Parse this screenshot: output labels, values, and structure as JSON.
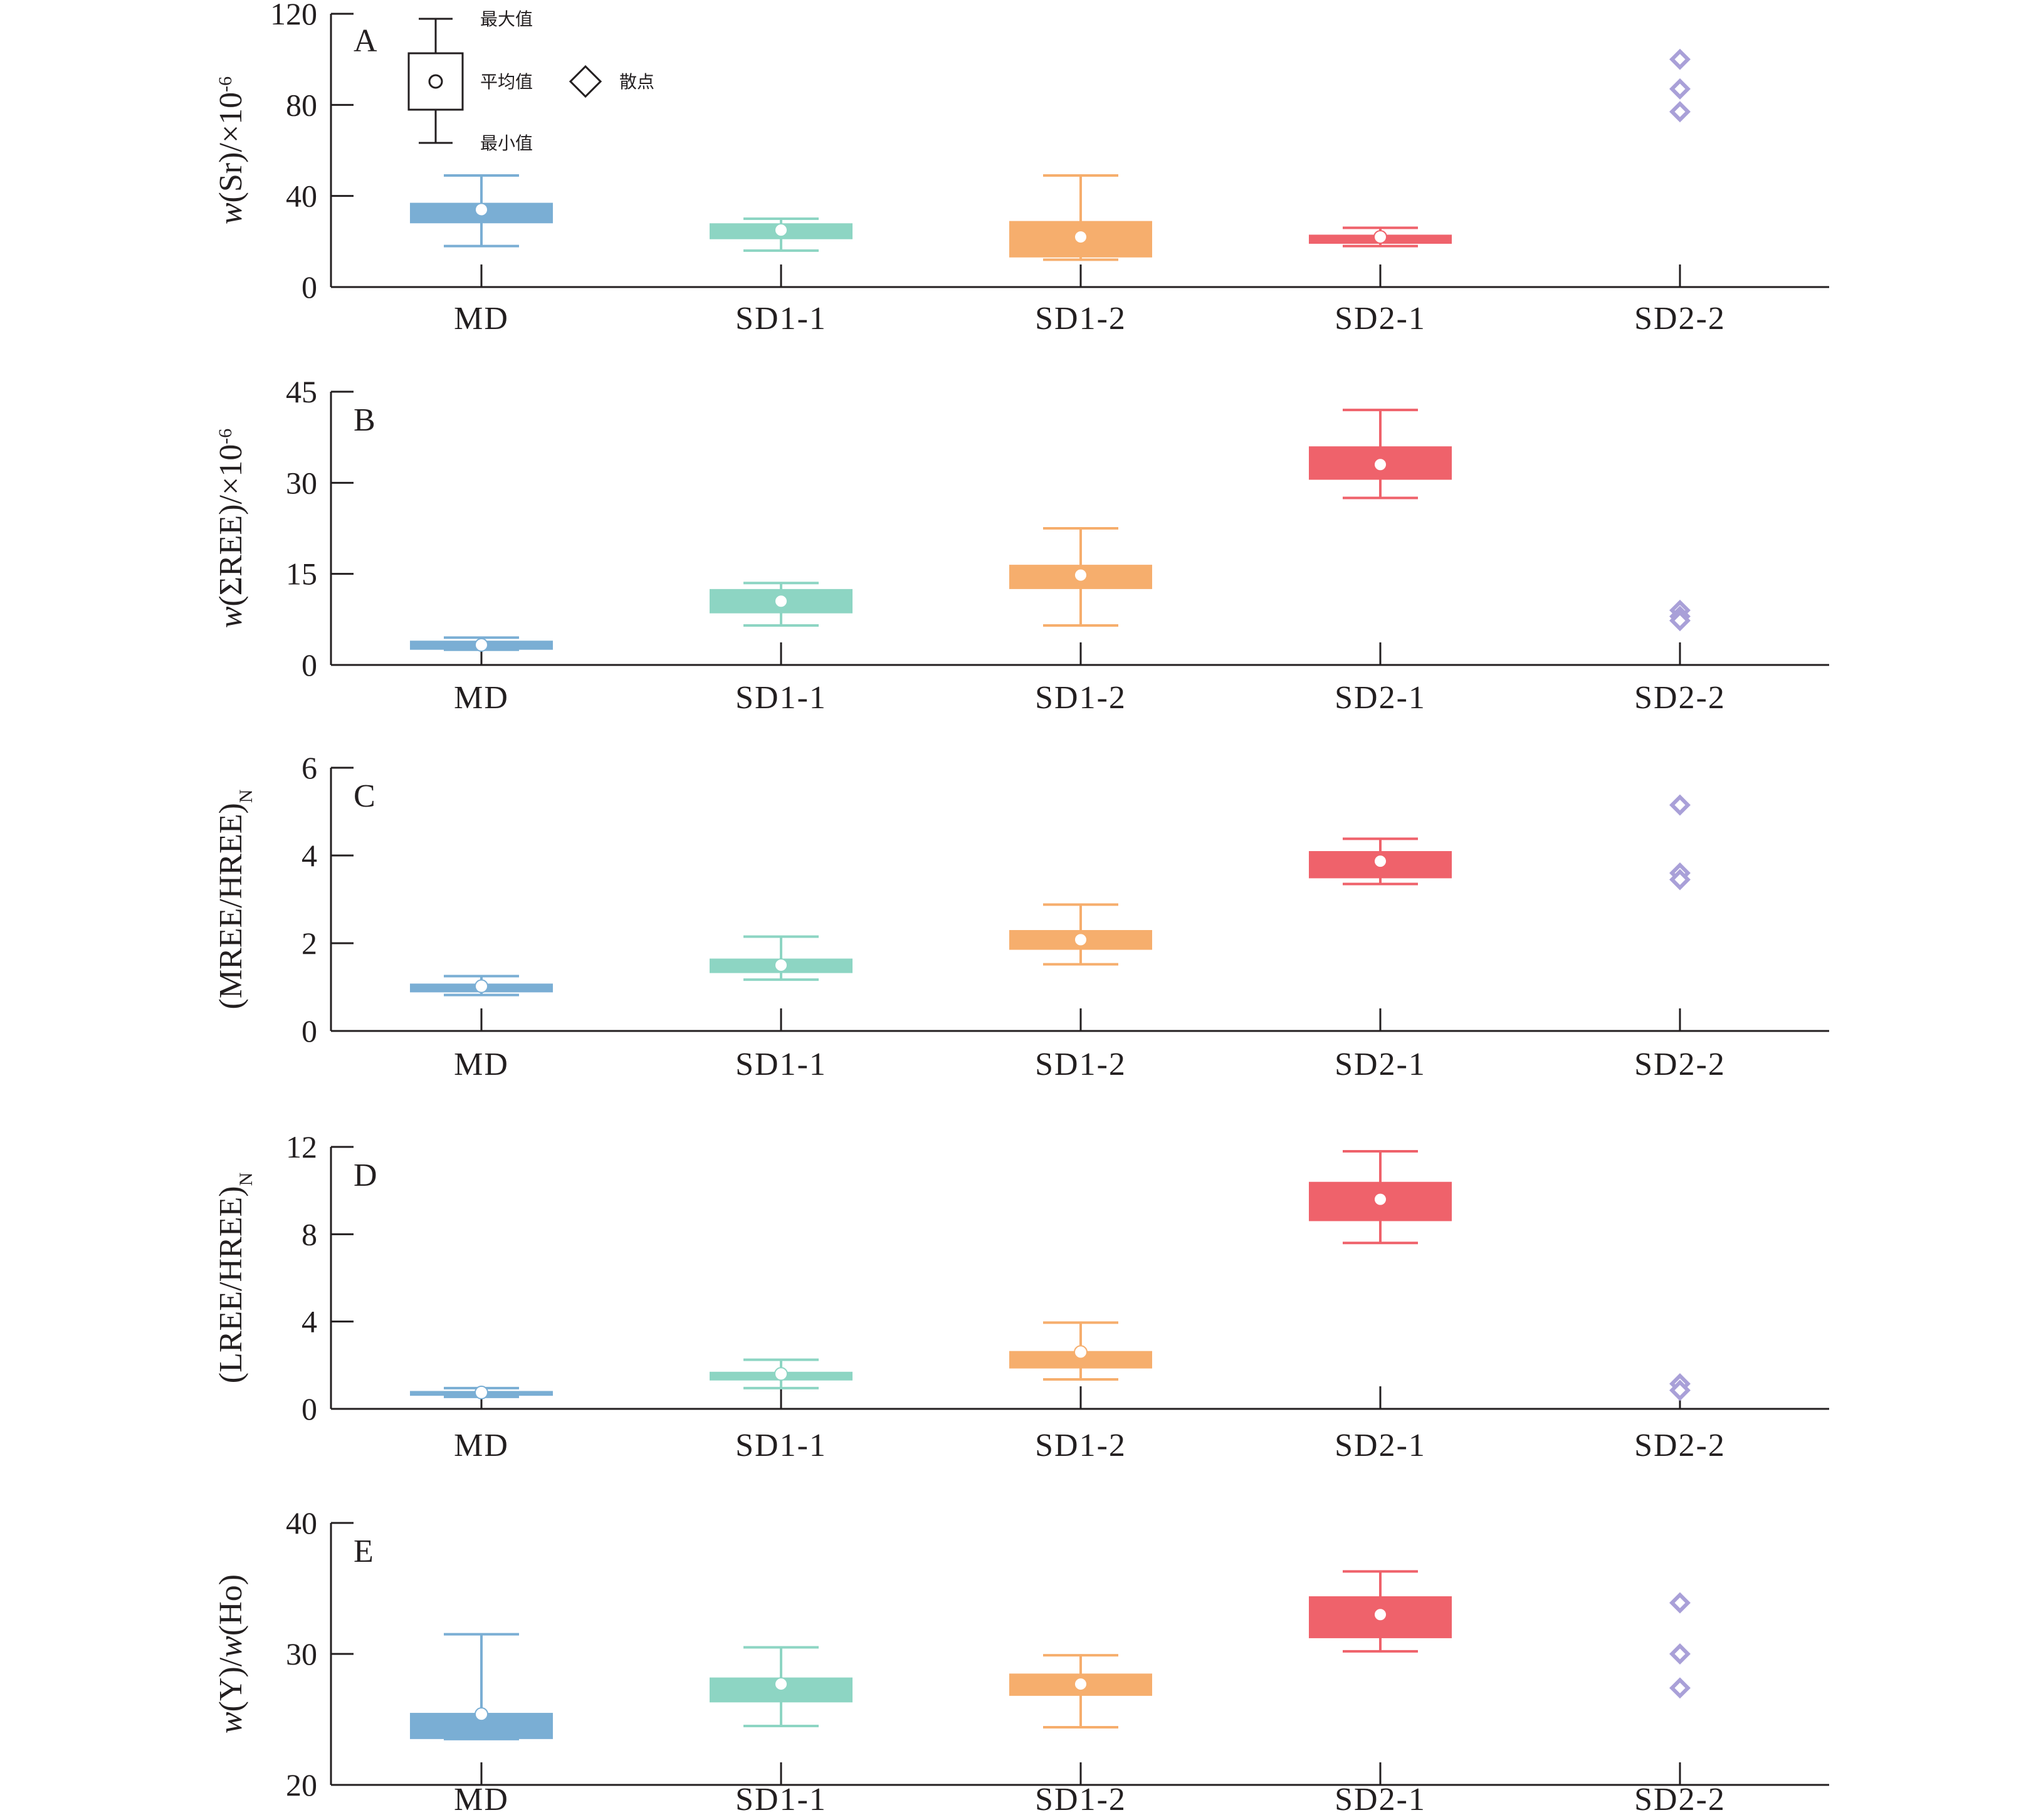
{
  "legend": {
    "max_label": "最大值",
    "mean_label": "平均值",
    "min_label": "最小值",
    "scatter_label": "散点"
  },
  "colors": {
    "MD": "#7aaed4",
    "SD1-1": "#8dd5c3",
    "SD1-2": "#f6ae6d",
    "SD2-1": "#ef626b",
    "SD2-2": "#a9a0d8",
    "axis": "#231f20"
  },
  "chart_data": [
    {
      "type": "box",
      "panel": "A",
      "ylabel_parts": [
        "w",
        "(Sr)/×10",
        "-6"
      ],
      "ylim": [
        0,
        120
      ],
      "yticks": [
        0,
        40,
        80,
        120
      ],
      "categories": [
        "MD",
        "SD1-1",
        "SD1-2",
        "SD2-1",
        "SD2-2"
      ],
      "boxes": [
        {
          "category": "MD",
          "min": 18,
          "q1": 28,
          "q3": 37,
          "max": 49,
          "mean": 34
        },
        {
          "category": "SD1-1",
          "min": 16,
          "q1": 21,
          "q3": 28,
          "max": 30,
          "mean": 25
        },
        {
          "category": "SD1-2",
          "min": 12,
          "q1": 13,
          "q3": 29,
          "max": 49,
          "mean": 22
        },
        {
          "category": "SD2-1",
          "min": 18,
          "q1": 19,
          "q3": 23,
          "max": 26,
          "mean": 22
        }
      ],
      "scatter": [
        {
          "category": "SD2-2",
          "values": [
            100,
            87,
            77
          ]
        }
      ]
    },
    {
      "type": "box",
      "panel": "B",
      "ylabel_parts": [
        "w",
        "(ΣREE)/×10",
        "-6"
      ],
      "ylim": [
        0,
        45
      ],
      "yticks": [
        0,
        15,
        30,
        45
      ],
      "categories": [
        "MD",
        "SD1-1",
        "SD1-2",
        "SD2-1",
        "SD2-2"
      ],
      "boxes": [
        {
          "category": "MD",
          "min": 2.5,
          "q1": 2.5,
          "q3": 4.0,
          "max": 4.5,
          "mean": 3.3
        },
        {
          "category": "SD1-1",
          "min": 6.5,
          "q1": 8.5,
          "q3": 12.5,
          "max": 13.5,
          "mean": 10.5
        },
        {
          "category": "SD1-2",
          "min": 6.5,
          "q1": 12.5,
          "q3": 16.5,
          "max": 22.5,
          "mean": 14.8
        },
        {
          "category": "SD2-1",
          "min": 27.5,
          "q1": 30.5,
          "q3": 36.0,
          "max": 42.0,
          "mean": 33.0
        }
      ],
      "scatter": [
        {
          "category": "SD2-2",
          "values": [
            9.0,
            8.0,
            7.3
          ]
        }
      ]
    },
    {
      "type": "box",
      "panel": "C",
      "ylabel_parts": [
        "(MREE/HREE)",
        "N"
      ],
      "ylim": [
        0,
        6
      ],
      "yticks": [
        0,
        2,
        4,
        6
      ],
      "categories": [
        "MD",
        "SD1-1",
        "SD1-2",
        "SD2-1",
        "SD2-2"
      ],
      "boxes": [
        {
          "category": "MD",
          "min": 0.82,
          "q1": 0.88,
          "q3": 1.08,
          "max": 1.25,
          "mean": 1.02
        },
        {
          "category": "SD1-1",
          "min": 1.17,
          "q1": 1.32,
          "q3": 1.65,
          "max": 2.15,
          "mean": 1.5
        },
        {
          "category": "SD1-2",
          "min": 1.52,
          "q1": 1.85,
          "q3": 2.3,
          "max": 2.88,
          "mean": 2.08
        },
        {
          "category": "SD2-1",
          "min": 3.35,
          "q1": 3.48,
          "q3": 4.1,
          "max": 4.38,
          "mean": 3.87
        }
      ],
      "scatter": [
        {
          "category": "SD2-2",
          "values": [
            5.15,
            3.6,
            3.45
          ]
        }
      ]
    },
    {
      "type": "box",
      "panel": "D",
      "ylabel_parts": [
        "(LREE/HREE)",
        "N"
      ],
      "ylim": [
        0,
        12
      ],
      "yticks": [
        0,
        4,
        8,
        12
      ],
      "categories": [
        "MD",
        "SD1-1",
        "SD1-2",
        "SD2-1",
        "SD2-2"
      ],
      "boxes": [
        {
          "category": "MD",
          "min": 0.55,
          "q1": 0.6,
          "q3": 0.82,
          "max": 0.95,
          "mean": 0.75
        },
        {
          "category": "SD1-1",
          "min": 0.95,
          "q1": 1.3,
          "q3": 1.7,
          "max": 2.25,
          "mean": 1.6
        },
        {
          "category": "SD1-2",
          "min": 1.35,
          "q1": 1.85,
          "q3": 2.65,
          "max": 3.95,
          "mean": 2.6
        },
        {
          "category": "SD2-1",
          "min": 7.6,
          "q1": 8.6,
          "q3": 10.4,
          "max": 11.8,
          "mean": 9.6
        }
      ],
      "scatter": [
        {
          "category": "SD2-2",
          "values": [
            1.15,
            0.85
          ]
        }
      ]
    },
    {
      "type": "box",
      "panel": "E",
      "ylabel_parts": [
        "w",
        "(Y)/",
        "w",
        "(Ho)"
      ],
      "ylim": [
        20,
        40
      ],
      "yticks": [
        20,
        30,
        40
      ],
      "categories": [
        "MD",
        "SD1-1",
        "SD1-2",
        "SD2-1",
        "SD2-2"
      ],
      "boxes": [
        {
          "category": "MD",
          "min": 23.5,
          "q1": 23.5,
          "q3": 25.5,
          "max": 31.5,
          "mean": 25.4
        },
        {
          "category": "SD1-1",
          "min": 24.5,
          "q1": 26.3,
          "q3": 28.2,
          "max": 30.5,
          "mean": 27.7
        },
        {
          "category": "SD1-2",
          "min": 24.4,
          "q1": 26.8,
          "q3": 28.5,
          "max": 29.9,
          "mean": 27.7
        },
        {
          "category": "SD2-1",
          "min": 30.2,
          "q1": 31.2,
          "q3": 34.4,
          "max": 36.3,
          "mean": 33.0
        }
      ],
      "scatter": [
        {
          "category": "SD2-2",
          "values": [
            33.9,
            30.0,
            27.4
          ]
        }
      ]
    }
  ]
}
